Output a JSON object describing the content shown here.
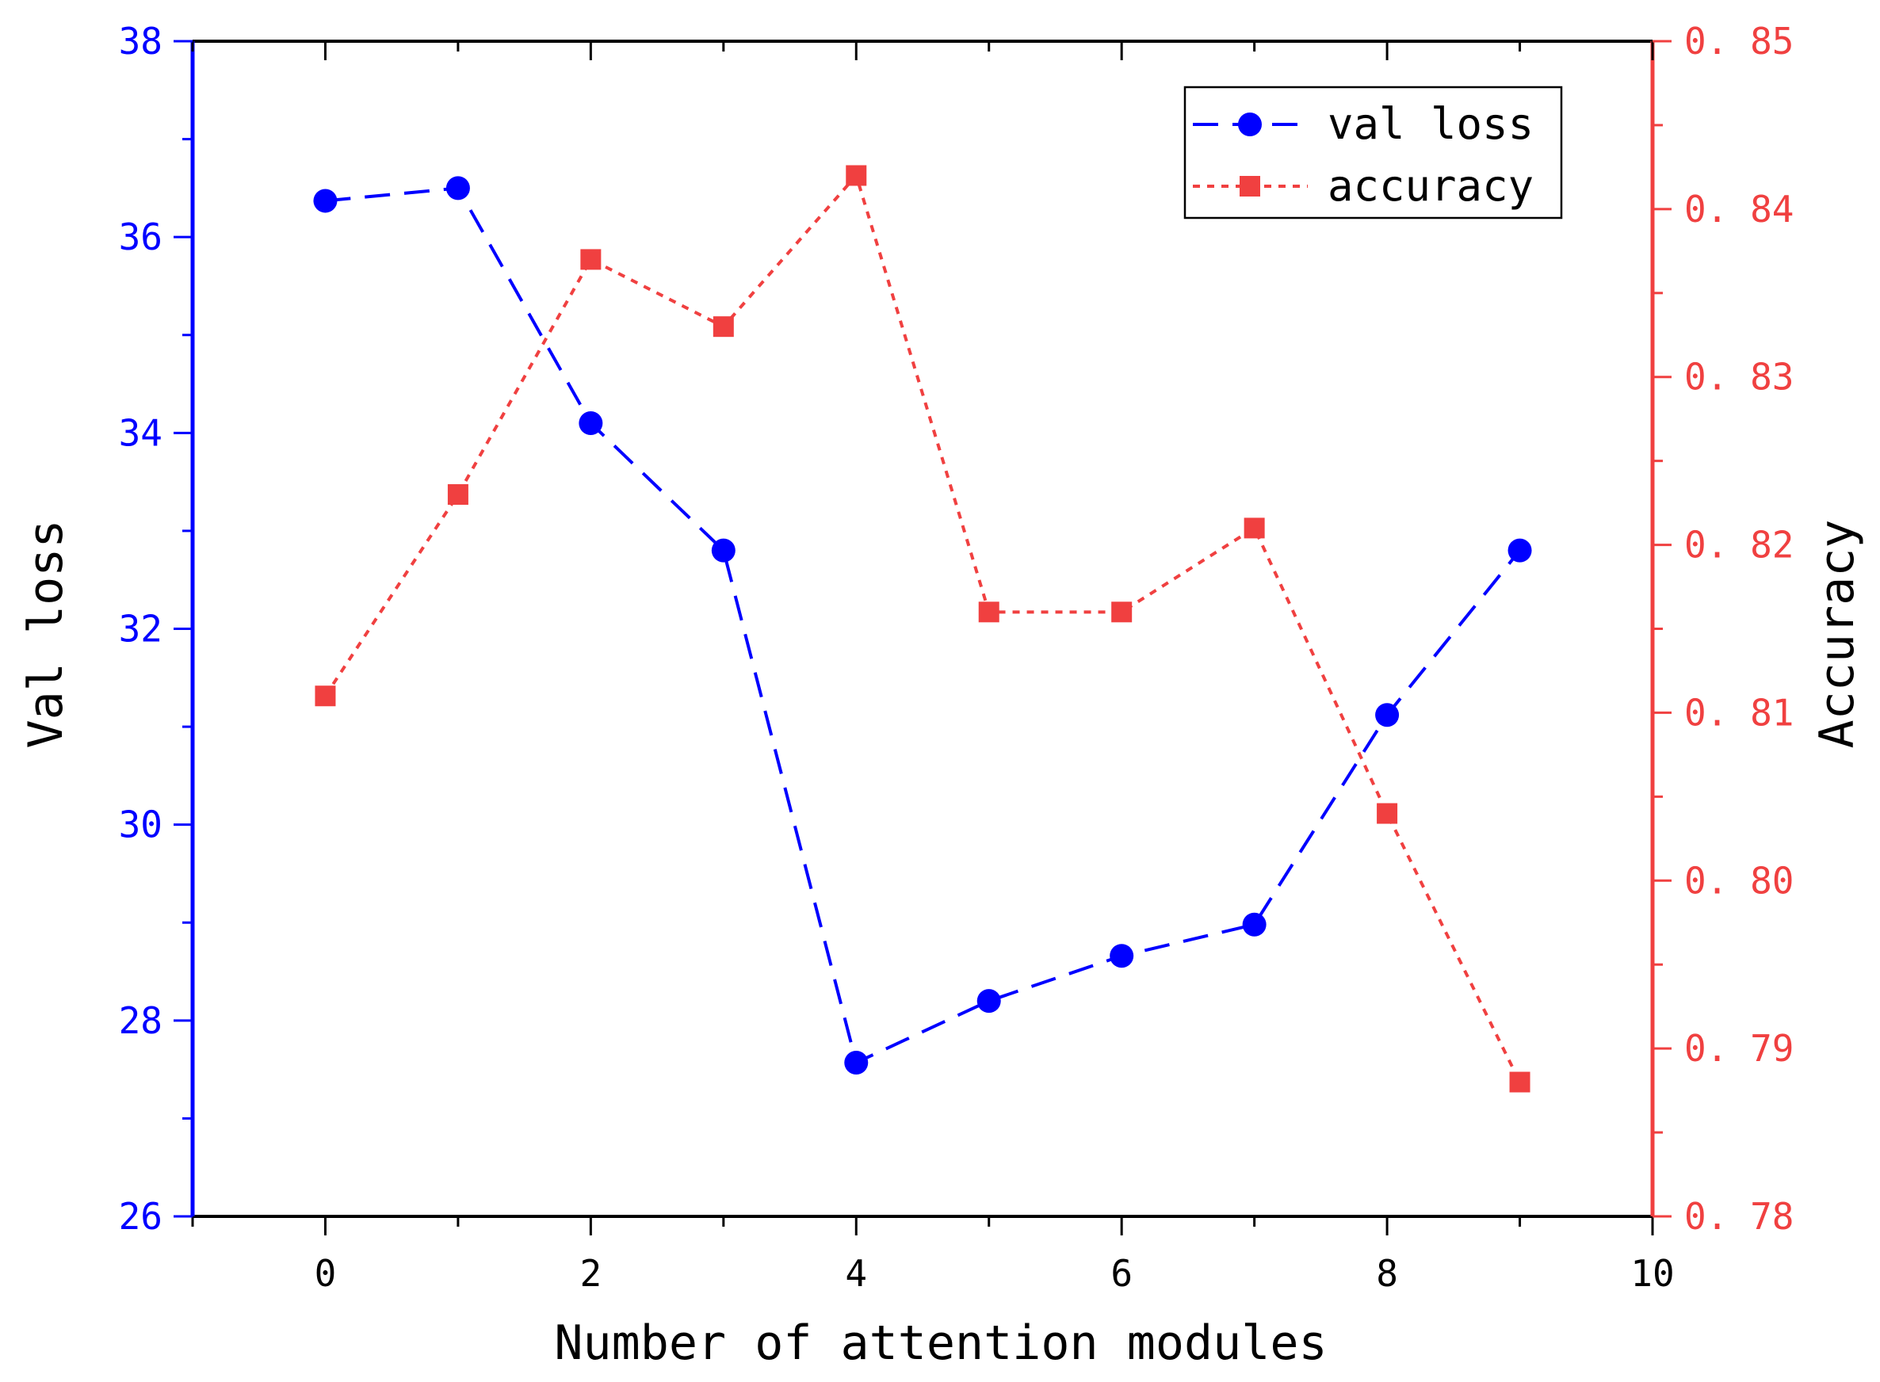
{
  "chart_data": {
    "type": "line",
    "title": "",
    "xlabel": "Number of attention modules",
    "ylabel_left": "Val loss",
    "ylabel_right": "Accuracy",
    "x": [
      0,
      1,
      2,
      3,
      4,
      5,
      6,
      7,
      8,
      9
    ],
    "xlim": [
      -1,
      10
    ],
    "xticks": [
      "0",
      "2",
      "4",
      "6",
      "8",
      "10"
    ],
    "ylim_left": [
      26,
      38
    ],
    "yticks_left": [
      "26",
      "28",
      "30",
      "32",
      "34",
      "36",
      "38"
    ],
    "ylim_right": [
      0.78,
      0.85
    ],
    "yticks_right": [
      "0.78",
      "0.79",
      "0.80",
      "0.81",
      "0.82",
      "0.83",
      "0.84",
      "0.85"
    ],
    "grid": false,
    "legend_position": "top-right",
    "series": [
      {
        "name": "val loss",
        "axis": "left",
        "color": "#0000ff",
        "marker": "circle",
        "line_style": "dashed",
        "values": [
          36.37,
          36.5,
          34.1,
          32.8,
          27.57,
          28.2,
          28.66,
          28.98,
          31.12,
          32.8
        ]
      },
      {
        "name": "accuracy",
        "axis": "right",
        "color": "#f04040",
        "marker": "square",
        "line_style": "dotted",
        "values": [
          0.811,
          0.823,
          0.837,
          0.833,
          0.842,
          0.816,
          0.816,
          0.821,
          0.804,
          0.788
        ]
      }
    ]
  },
  "colors": {
    "left_axis": "#0000ff",
    "right_axis": "#f04040",
    "frame": "#000000"
  }
}
